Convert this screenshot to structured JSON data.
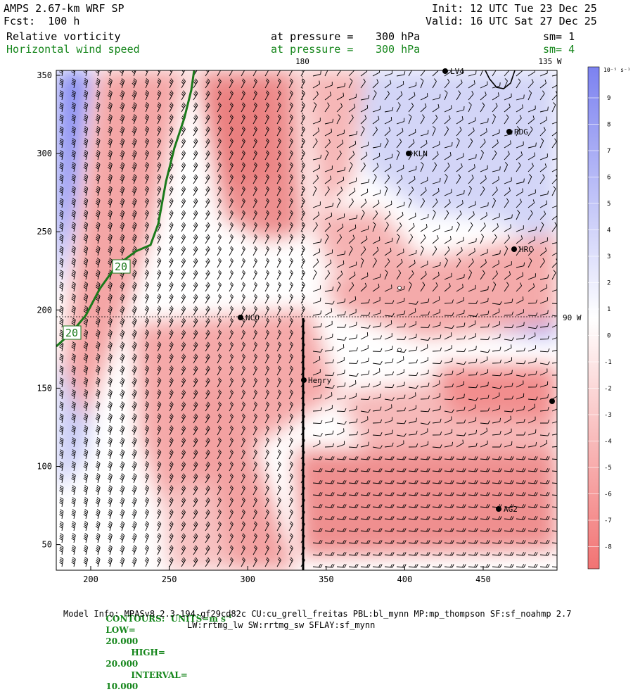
{
  "header": {
    "title": "AMPS 2.67-km WRF SP",
    "forecast": "Fcst:  100 h",
    "init": "Init: 12 UTC Tue 23 Dec 25",
    "valid": "Valid: 16 UTC Sat 27 Dec 25"
  },
  "fields": [
    {
      "name": "Relative vorticity",
      "pressure_label": "at pressure =",
      "pressure_value": "300 hPa",
      "smooth": "sm= 1"
    },
    {
      "name": "Horizontal wind speed",
      "pressure_label": "at pressure =",
      "pressure_value": "300 hPa",
      "smooth": "sm= 4"
    }
  ],
  "map": {
    "x_ticks": [
      "200",
      "250",
      "300",
      "350",
      "400",
      "450"
    ],
    "y_ticks": [
      "350",
      "300",
      "250",
      "200",
      "150",
      "100",
      "50"
    ],
    "meridian_labels": [
      "180",
      "135 W",
      "90 W"
    ],
    "contour_labels": [
      "20",
      "20"
    ],
    "stations": [
      {
        "name": "RDG"
      },
      {
        "name": "KLN"
      },
      {
        "name": "HRC"
      },
      {
        "name": "NCO"
      },
      {
        "name": "Henry"
      },
      {
        "name": "AG2"
      },
      {
        "name": "LV4"
      }
    ]
  },
  "colorbar": {
    "unit": "10⁻⁵ s⁻¹",
    "ticks": [
      "9",
      "8",
      "7",
      "6",
      "5",
      "4",
      "3",
      "2",
      "1",
      "0",
      "-1",
      "-2",
      "-3",
      "-4",
      "-5",
      "-6",
      "-7",
      "-8"
    ],
    "colors": {
      "positive": "#7d84f0",
      "negative": "#f27878",
      "neutral": "#ffffff"
    }
  },
  "footer": {
    "contours_label": "CONTOURS:  UNITS=m s",
    "contours_unit_exp": "-1",
    "low_label": "LOW=",
    "low_value": "20.000",
    "high_label": "HIGH=",
    "high_value": "20.000",
    "interval_label": "INTERVAL=",
    "interval_value": "10.000",
    "model_info_1": "Model Info: MPASv8.2.3-194-gf29cd82c CU:cu_grell_freitas PBL:bl_mynn MP:mp_thompson SF:sf_noahmp 2.7",
    "model_info_2": "LW:rrtmg_lw SW:rrtmg_sw SFLAY:sf_mynn"
  }
}
